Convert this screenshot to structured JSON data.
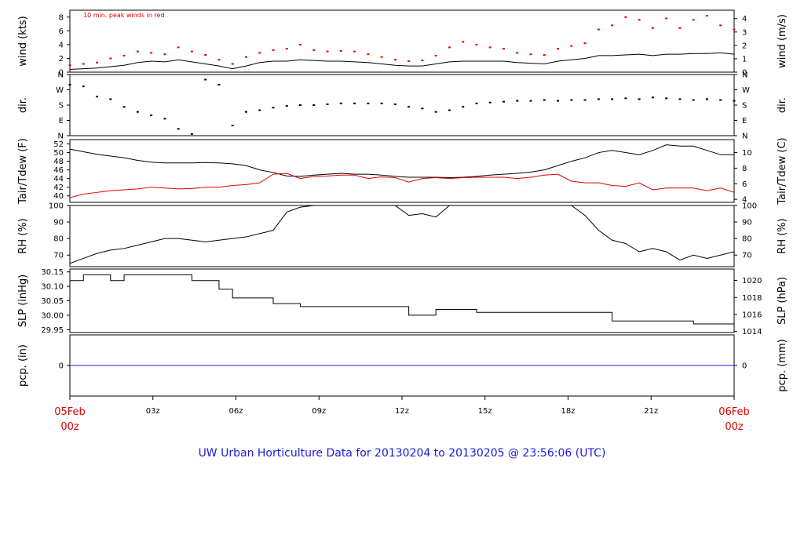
{
  "chart_data": {
    "type": "line",
    "title": "UW Urban Horticulture Data for 20130204  to  20130205 @ 23:56:06  (UTC)",
    "x_ticks": [
      "03z",
      "06z",
      "09z",
      "12z",
      "15z",
      "18z",
      "21z"
    ],
    "x_start": {
      "date": "05Feb",
      "time": "00z"
    },
    "x_end": {
      "date": "06Feb",
      "time": "00z"
    },
    "panels": [
      {
        "id": "wind",
        "ylabel_left": "wind (kts)",
        "ylabel_right": "wind (m/s)",
        "ylim": [
          0,
          9
        ],
        "yticks_left": [
          "0",
          "2",
          "4",
          "6",
          "8"
        ],
        "yticks_right": [
          "0",
          "1",
          "2",
          "3",
          "4"
        ],
        "annotation": "10 min. peak winds in red",
        "series": [
          {
            "values": [
              0.4,
              0.5,
              0.6,
              0.8,
              1.0,
              1.4,
              1.6,
              1.5,
              1.8,
              1.5,
              1.2,
              0.9,
              0.5,
              0.9,
              1.4,
              1.6,
              1.6,
              1.8,
              1.7,
              1.6,
              1.6,
              1.5,
              1.4,
              1.2,
              1.0,
              0.9,
              0.9,
              1.2,
              1.5,
              1.6,
              1.6,
              1.6,
              1.6,
              1.4,
              1.3,
              1.2,
              1.6,
              1.8,
              2.0,
              2.4,
              2.4,
              2.5,
              2.6,
              2.4,
              2.6,
              2.6,
              2.7,
              2.7,
              2.8,
              2.6
            ]
          },
          {
            "color": "#e00000",
            "style": "dots",
            "values": [
              1.0,
              1.2,
              1.4,
              2.0,
              2.4,
              3.0,
              2.8,
              2.6,
              3.6,
              3.0,
              2.5,
              1.8,
              1.2,
              2.2,
              2.8,
              3.2,
              3.4,
              4.0,
              3.2,
              3.0,
              3.1,
              3.0,
              2.6,
              2.2,
              1.8,
              1.6,
              1.7,
              2.4,
              3.6,
              4.4,
              4.0,
              3.6,
              3.4,
              2.8,
              2.6,
              2.5,
              3.4,
              3.8,
              4.2,
              6.2,
              6.8,
              8.0,
              7.6,
              6.4,
              7.8,
              6.4,
              7.6,
              8.2,
              6.8,
              6.2
            ]
          }
        ]
      },
      {
        "id": "dir",
        "ylabel_left": "dir.",
        "ylabel_right": "dir.",
        "ylim": [
          0,
          360
        ],
        "yticks_left": [
          "N",
          "E",
          "S",
          "W",
          "N"
        ],
        "yticks_right": [
          "N",
          "E",
          "S",
          "W",
          "N"
        ],
        "series": [
          {
            "style": "dots",
            "values": [
              300,
              290,
              230,
              215,
              170,
              140,
              120,
              100,
              40,
              10,
              330,
              300,
              60,
              140,
              150,
              165,
              175,
              180,
              180,
              185,
              190,
              190,
              190,
              190,
              185,
              170,
              160,
              140,
              150,
              170,
              190,
              195,
              200,
              205,
              205,
              210,
              205,
              210,
              210,
              215,
              215,
              220,
              215,
              225,
              220,
              215,
              210,
              215,
              210,
              205
            ]
          }
        ]
      },
      {
        "id": "temp",
        "ylabel_left": "Tair/Tdew (F)",
        "ylabel_right": "Tair/Tdew (C)",
        "ylim": [
          38.5,
          53
        ],
        "yticks_left": [
          "40",
          "42",
          "44",
          "46",
          "48",
          "50",
          "52"
        ],
        "yticks_right": [
          "4",
          "6",
          "8",
          "10"
        ],
        "series": [
          {
            "color": "#000000",
            "values": [
              50.8,
              50.2,
              49.6,
              49.2,
              48.8,
              48.2,
              47.8,
              47.6,
              47.6,
              47.6,
              47.7,
              47.6,
              47.4,
              47.0,
              46.0,
              45.4,
              44.6,
              44.5,
              44.8,
              45.0,
              45.2,
              45.0,
              45.0,
              44.8,
              44.5,
              44.3,
              44.3,
              44.3,
              44.2,
              44.3,
              44.5,
              44.8,
              45.0,
              45.2,
              45.5,
              46.0,
              47.0,
              48.0,
              48.8,
              50.0,
              50.5,
              50.0,
              49.5,
              50.5,
              51.8,
              51.5,
              51.5,
              50.5,
              49.5,
              49.5
            ]
          },
          {
            "color": "#e00000",
            "values": [
              39.6,
              40.4,
              40.8,
              41.2,
              41.4,
              41.6,
              42.0,
              41.8,
              41.6,
              41.7,
              42.0,
              42.0,
              42.4,
              42.6,
              43.0,
              45.0,
              45.2,
              44.0,
              44.5,
              44.6,
              44.8,
              44.8,
              44.0,
              44.4,
              44.2,
              43.2,
              44.0,
              44.2,
              44.0,
              44.2,
              44.3,
              44.3,
              44.3,
              44.0,
              44.3,
              44.8,
              45.0,
              43.4,
              43.0,
              43.0,
              42.4,
              42.2,
              43.0,
              41.4,
              41.8,
              41.8,
              41.8,
              41.2,
              41.8,
              40.8
            ]
          }
        ]
      },
      {
        "id": "rh",
        "ylabel_left": "RH (%)",
        "ylabel_right": "RH (%)",
        "ylim": [
          63,
          100
        ],
        "yticks_left": [
          "70",
          "80",
          "90",
          "100"
        ],
        "yticks_right": [
          "70",
          "80",
          "90",
          "100"
        ],
        "series": [
          {
            "color": "#000000",
            "values": [
              65,
              68,
              71,
              73,
              74,
              76,
              78,
              80,
              80,
              79,
              78,
              79,
              80,
              81,
              83,
              85,
              96,
              99,
              100,
              100,
              100,
              100,
              100,
              100,
              100,
              94,
              95,
              93,
              100,
              100,
              100,
              100,
              100,
              100,
              100,
              100,
              100,
              100,
              94,
              85,
              79,
              77,
              72,
              74,
              72,
              67,
              70,
              68,
              70,
              72
            ]
          }
        ]
      },
      {
        "id": "slp",
        "ylabel_left": "SLP (inHg)",
        "ylabel_right": "SLP (hPa)",
        "ylim": [
          29.94,
          30.16
        ],
        "yticks_left": [
          "29.95",
          "30.00",
          "30.05",
          "30.10",
          "30.15"
        ],
        "yticks_right": [
          "1014",
          "1016",
          "1018",
          "1020"
        ],
        "series": [
          {
            "color": "#000000",
            "step": true,
            "values": [
              30.12,
              30.14,
              30.14,
              30.12,
              30.14,
              30.14,
              30.14,
              30.14,
              30.14,
              30.12,
              30.12,
              30.09,
              30.06,
              30.06,
              30.06,
              30.04,
              30.04,
              30.03,
              30.03,
              30.03,
              30.03,
              30.03,
              30.03,
              30.03,
              30.03,
              30.0,
              30.0,
              30.02,
              30.02,
              30.02,
              30.01,
              30.01,
              30.01,
              30.01,
              30.01,
              30.01,
              30.01,
              30.01,
              30.01,
              30.01,
              29.98,
              29.98,
              29.98,
              29.98,
              29.98,
              29.98,
              29.97,
              29.97,
              29.97,
              29.97
            ]
          }
        ]
      },
      {
        "id": "pcp",
        "ylabel_left": "pcp. (in)",
        "ylabel_right": "pcp. (mm)",
        "ylim": [
          -1,
          1
        ],
        "yticks_left": [
          "0"
        ],
        "yticks_right": [
          "0"
        ],
        "series": [
          {
            "color": "#1a1adc",
            "values": [
              0,
              0
            ]
          }
        ]
      }
    ]
  }
}
